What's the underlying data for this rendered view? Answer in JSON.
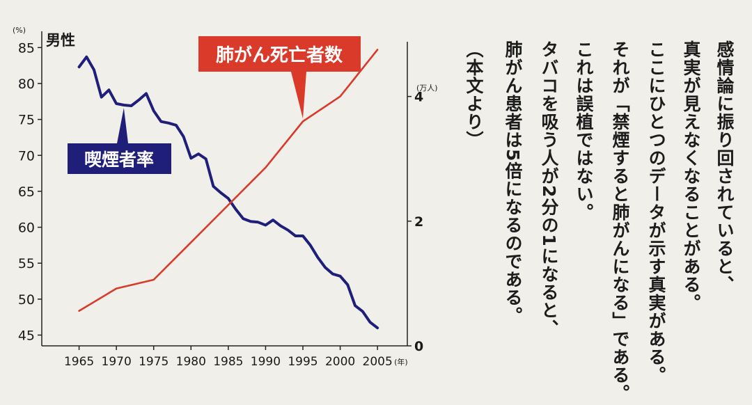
{
  "chart_data": {
    "type": "line",
    "title": "男性",
    "x_unit": "(年)",
    "x_ticks": [
      1965,
      1970,
      1975,
      1980,
      1985,
      1990,
      1995,
      2000,
      2005
    ],
    "xlim": [
      1960,
      2009
    ],
    "y_left": {
      "unit": "(%)",
      "ticks": [
        45,
        50,
        55,
        60,
        65,
        70,
        75,
        80,
        85
      ],
      "range": [
        43.5,
        86
      ]
    },
    "y_right": {
      "unit": "(万人)",
      "ticks": [
        0,
        2,
        4
      ],
      "range": [
        0,
        4.9
      ]
    },
    "series": [
      {
        "name": "喫煙者率",
        "axis": "left",
        "color": "#1f1f7a",
        "x": [
          1965,
          1966,
          1967,
          1968,
          1969,
          1970,
          1971,
          1972,
          1973,
          1974,
          1975,
          1976,
          1977,
          1978,
          1979,
          1980,
          1981,
          1982,
          1983,
          1984,
          1985,
          1986,
          1987,
          1988,
          1989,
          1990,
          1991,
          1992,
          1993,
          1994,
          1995,
          1996,
          1997,
          1998,
          1999,
          2000,
          2001,
          2002,
          2003,
          2004,
          2005
        ],
        "values": [
          82.3,
          83.7,
          81.9,
          78.1,
          79.1,
          77.2,
          77.0,
          76.9,
          77.7,
          78.6,
          76.2,
          74.7,
          74.5,
          74.2,
          72.6,
          69.6,
          70.2,
          69.5,
          65.7,
          64.8,
          64.0,
          62.5,
          61.2,
          60.8,
          60.7,
          60.3,
          61.0,
          60.2,
          59.6,
          58.8,
          58.8,
          57.5,
          55.8,
          54.4,
          53.5,
          53.2,
          52.0,
          49.1,
          48.3,
          46.8,
          46.0
        ]
      },
      {
        "name": "肺がん死亡者数",
        "axis": "right",
        "color": "#d93a2a",
        "x": [
          1965,
          1970,
          1975,
          1980,
          1985,
          1990,
          1995,
          2000,
          2005
        ],
        "values": [
          0.56,
          0.92,
          1.06,
          1.66,
          2.26,
          2.86,
          3.6,
          4.0,
          4.75
        ]
      }
    ]
  },
  "body_text": {
    "columns": [
      "感情論に振り回されていると、",
      "真実が見えなくなることがある。",
      "ここにひとつのデータが示す真実がある。",
      "それが「禁煙すると肺がんになる」である。",
      "これは誤植ではない。",
      "タバコを吸う人が2分の1になると、",
      "肺がん患者は5倍になるのである。",
      "（本文より）"
    ]
  }
}
